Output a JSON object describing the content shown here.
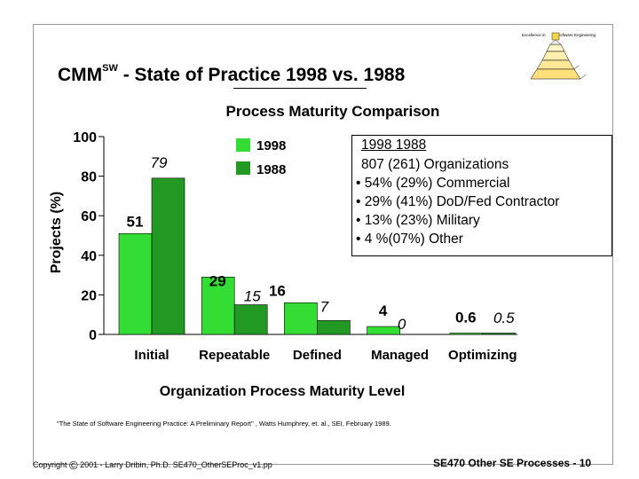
{
  "slide": {
    "title_prefix": "CMM",
    "title_sup": "SW",
    "title_rest": " - State of Practice 1998 vs. 1988",
    "citation": "\"The State of Software Engineering Practice: A Preliminary Report\" , Watts Humphrey, et. al., SEI, February 1989.",
    "copyright_prefix": "Copyright",
    "copyright_symbol": "©",
    "copyright_rest": "2001 - Larry Dribin, Ph.D. SE470_OtherSEProc_v1.pp",
    "page_label": "SE470 Other SE Processes - 10"
  },
  "logo": {
    "left_text": "Excellence in",
    "right_text": "Software Engineering"
  },
  "infobox": {
    "header": "1998  1988",
    "line1": "807 (261)   Organizations",
    "line2": "• 54% (29%) Commercial",
    "line3": "• 29% (41%) DoD/Fed Contractor",
    "line4": "• 13% (23%) Military",
    "line5": "•   4 %(07%) Other"
  },
  "chart_data": {
    "type": "bar",
    "title": "Process Maturity Comparison",
    "xlabel": "Organization Process Maturity Level",
    "ylabel": "Projects (%)",
    "ylim": [
      0,
      100
    ],
    "yticks": [
      0,
      20,
      40,
      60,
      80,
      100
    ],
    "categories": [
      "Initial",
      "Repeatable",
      "Defined",
      "Managed",
      "Optimizing"
    ],
    "series": [
      {
        "name": "1998",
        "color": "#33dd33",
        "values": [
          51,
          29,
          16,
          4,
          0.6
        ],
        "labels": [
          "51",
          "29",
          "16",
          "4",
          "0.6"
        ],
        "label_style": "bold"
      },
      {
        "name": "1988",
        "color": "#229922",
        "values": [
          79,
          15,
          7,
          0,
          0.5
        ],
        "labels": [
          "79",
          "15",
          "7",
          "0",
          "0.5"
        ],
        "label_style": "italic"
      }
    ],
    "legend": [
      "1998",
      "1988"
    ],
    "grid": false
  }
}
